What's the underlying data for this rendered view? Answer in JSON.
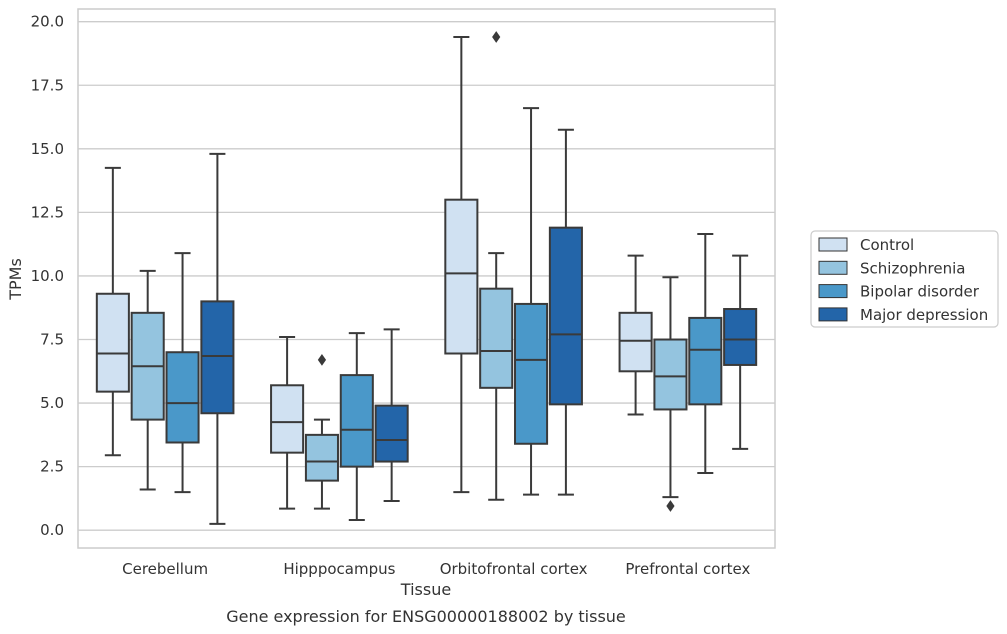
{
  "chart_data": {
    "type": "box",
    "title": "",
    "caption": "Gene expression for ENSG00000188002 by tissue",
    "xlabel": "Tissue",
    "ylabel": "TPMs",
    "ylim": [
      -0.7,
      20.5
    ],
    "yticks": [
      "0.0",
      "2.5",
      "5.0",
      "7.5",
      "10.0",
      "12.5",
      "15.0",
      "17.5",
      "20.0"
    ],
    "ytick_values": [
      0,
      2.5,
      5,
      7.5,
      10,
      12.5,
      15,
      17.5,
      20
    ],
    "grid": "horizontal",
    "legend_position": "right",
    "categories": [
      "Cerebellum",
      "Hipppocampus",
      "Orbitofrontal cortex",
      "Prefrontal cortex"
    ],
    "series": [
      {
        "name": "Control",
        "color": "#d0e1f2",
        "boxes": [
          {
            "whislo": 2.95,
            "q1": 5.45,
            "med": 6.95,
            "q3": 9.3,
            "whishi": 14.25,
            "fliers": []
          },
          {
            "whislo": 0.85,
            "q1": 3.05,
            "med": 4.25,
            "q3": 5.7,
            "whishi": 7.6,
            "fliers": []
          },
          {
            "whislo": 1.5,
            "q1": 6.95,
            "med": 10.1,
            "q3": 13.0,
            "whishi": 19.4,
            "fliers": []
          },
          {
            "whislo": 4.55,
            "q1": 6.25,
            "med": 7.45,
            "q3": 8.55,
            "whishi": 10.8,
            "fliers": []
          }
        ]
      },
      {
        "name": "Schizophrenia",
        "color": "#94c4df",
        "boxes": [
          {
            "whislo": 1.6,
            "q1": 4.35,
            "med": 6.45,
            "q3": 8.55,
            "whishi": 10.2,
            "fliers": []
          },
          {
            "whislo": 0.85,
            "q1": 1.95,
            "med": 2.7,
            "q3": 3.75,
            "whishi": 4.35,
            "fliers": [
              6.7
            ]
          },
          {
            "whislo": 1.2,
            "q1": 5.6,
            "med": 7.05,
            "q3": 9.5,
            "whishi": 10.9,
            "fliers": [
              19.4
            ]
          },
          {
            "whislo": 1.3,
            "q1": 4.75,
            "med": 6.05,
            "q3": 7.5,
            "whishi": 9.95,
            "fliers": [
              0.95
            ]
          }
        ]
      },
      {
        "name": "Bipolar disorder",
        "color": "#4a98c9",
        "boxes": [
          {
            "whislo": 1.5,
            "q1": 3.45,
            "med": 5.0,
            "q3": 7.0,
            "whishi": 10.9,
            "fliers": []
          },
          {
            "whislo": 0.4,
            "q1": 2.5,
            "med": 3.95,
            "q3": 6.1,
            "whishi": 7.75,
            "fliers": []
          },
          {
            "whislo": 1.4,
            "q1": 3.4,
            "med": 6.7,
            "q3": 8.9,
            "whishi": 16.6,
            "fliers": []
          },
          {
            "whislo": 2.25,
            "q1": 4.95,
            "med": 7.1,
            "q3": 8.35,
            "whishi": 11.65,
            "fliers": []
          }
        ]
      },
      {
        "name": "Major depression",
        "color": "#2365a9",
        "boxes": [
          {
            "whislo": 0.25,
            "q1": 4.6,
            "med": 6.85,
            "q3": 9.0,
            "whishi": 14.8,
            "fliers": []
          },
          {
            "whislo": 1.15,
            "q1": 2.7,
            "med": 3.55,
            "q3": 4.9,
            "whishi": 7.9,
            "fliers": []
          },
          {
            "whislo": 1.4,
            "q1": 4.95,
            "med": 7.7,
            "q3": 11.9,
            "whishi": 15.75,
            "fliers": []
          },
          {
            "whislo": 3.2,
            "q1": 6.5,
            "med": 7.5,
            "q3": 8.7,
            "whishi": 10.8,
            "fliers": []
          }
        ]
      }
    ]
  }
}
